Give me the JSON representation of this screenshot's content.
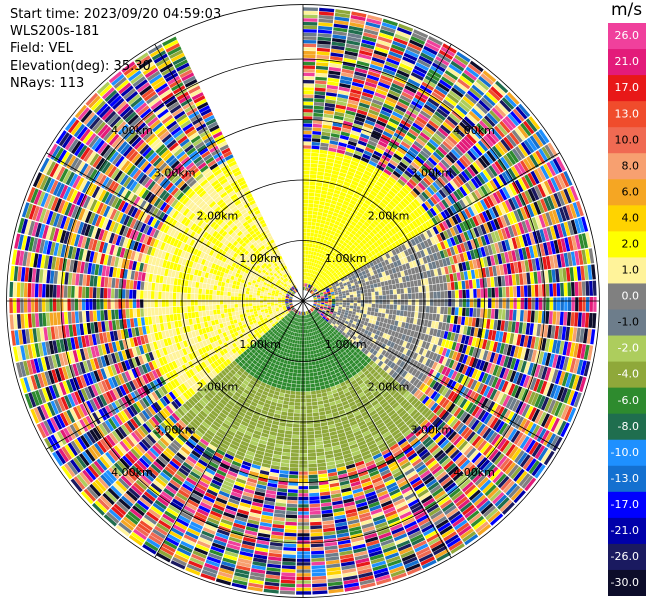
{
  "info": {
    "start_time": "Start time: 2023/09/20 04:59:03",
    "instrument": "WLS200s-181",
    "field": "Field: VEL",
    "elevation": "Elevation(deg): 35.30",
    "nrays": "NRays: 113"
  },
  "colorbar": {
    "unit": "m/s",
    "ticks": [
      "26.0",
      "21.0",
      "17.0",
      "13.0",
      "10.0",
      "8.0",
      "6.0",
      "4.0",
      "2.0",
      "1.0",
      "0.0",
      "-1.0",
      "-2.0",
      "-4.0",
      "-6.0",
      "-8.0",
      "-10.0",
      "-13.0",
      "-17.0",
      "-21.0",
      "-26.0",
      "-30.0"
    ],
    "colors": [
      "#f0409c",
      "#e31b7a",
      "#e81818",
      "#f04c2c",
      "#f06a52",
      "#f7a070",
      "#f5a623",
      "#ffd300",
      "#ffff00",
      "#fff39a",
      "#808080",
      "#6d7d8b",
      "#adcd5d",
      "#8fa83a",
      "#2e8b2e",
      "#1f6e4e",
      "#1e90ff",
      "#1470d0",
      "#0000ff",
      "#0000aa",
      "#1a1a60",
      "#0d0d2a"
    ]
  },
  "chart_data": {
    "type": "ppi",
    "field": "VEL",
    "units": "m/s",
    "elevation_deg": 35.3,
    "n_rays": 113,
    "range_ring_labels": [
      "1.00km",
      "2.00km",
      "3.00km",
      "4.00km"
    ],
    "range_rings_km": [
      1.0,
      2.0,
      3.0,
      4.0
    ],
    "max_range_km": 4.9,
    "gap_azimuth_deg": [
      335,
      360
    ],
    "velocity_regions": [
      {
        "azimuth_deg": [
          0,
          60
        ],
        "range_km": [
          0.3,
          2.5
        ],
        "velocity_ms": 3.0
      },
      {
        "azimuth_deg": [
          60,
          130
        ],
        "range_km": [
          0.5,
          2.4
        ],
        "velocity_ms": 0.5
      },
      {
        "azimuth_deg": [
          130,
          230
        ],
        "range_km": [
          0.2,
          1.5
        ],
        "velocity_ms": -5.0
      },
      {
        "azimuth_deg": [
          130,
          230
        ],
        "range_km": [
          1.5,
          2.8
        ],
        "velocity_ms": -2.5
      },
      {
        "azimuth_deg": [
          230,
          335
        ],
        "range_km": [
          0.3,
          2.6
        ],
        "velocity_ms": 2.0
      }
    ],
    "noise_beyond_km": 2.8
  }
}
